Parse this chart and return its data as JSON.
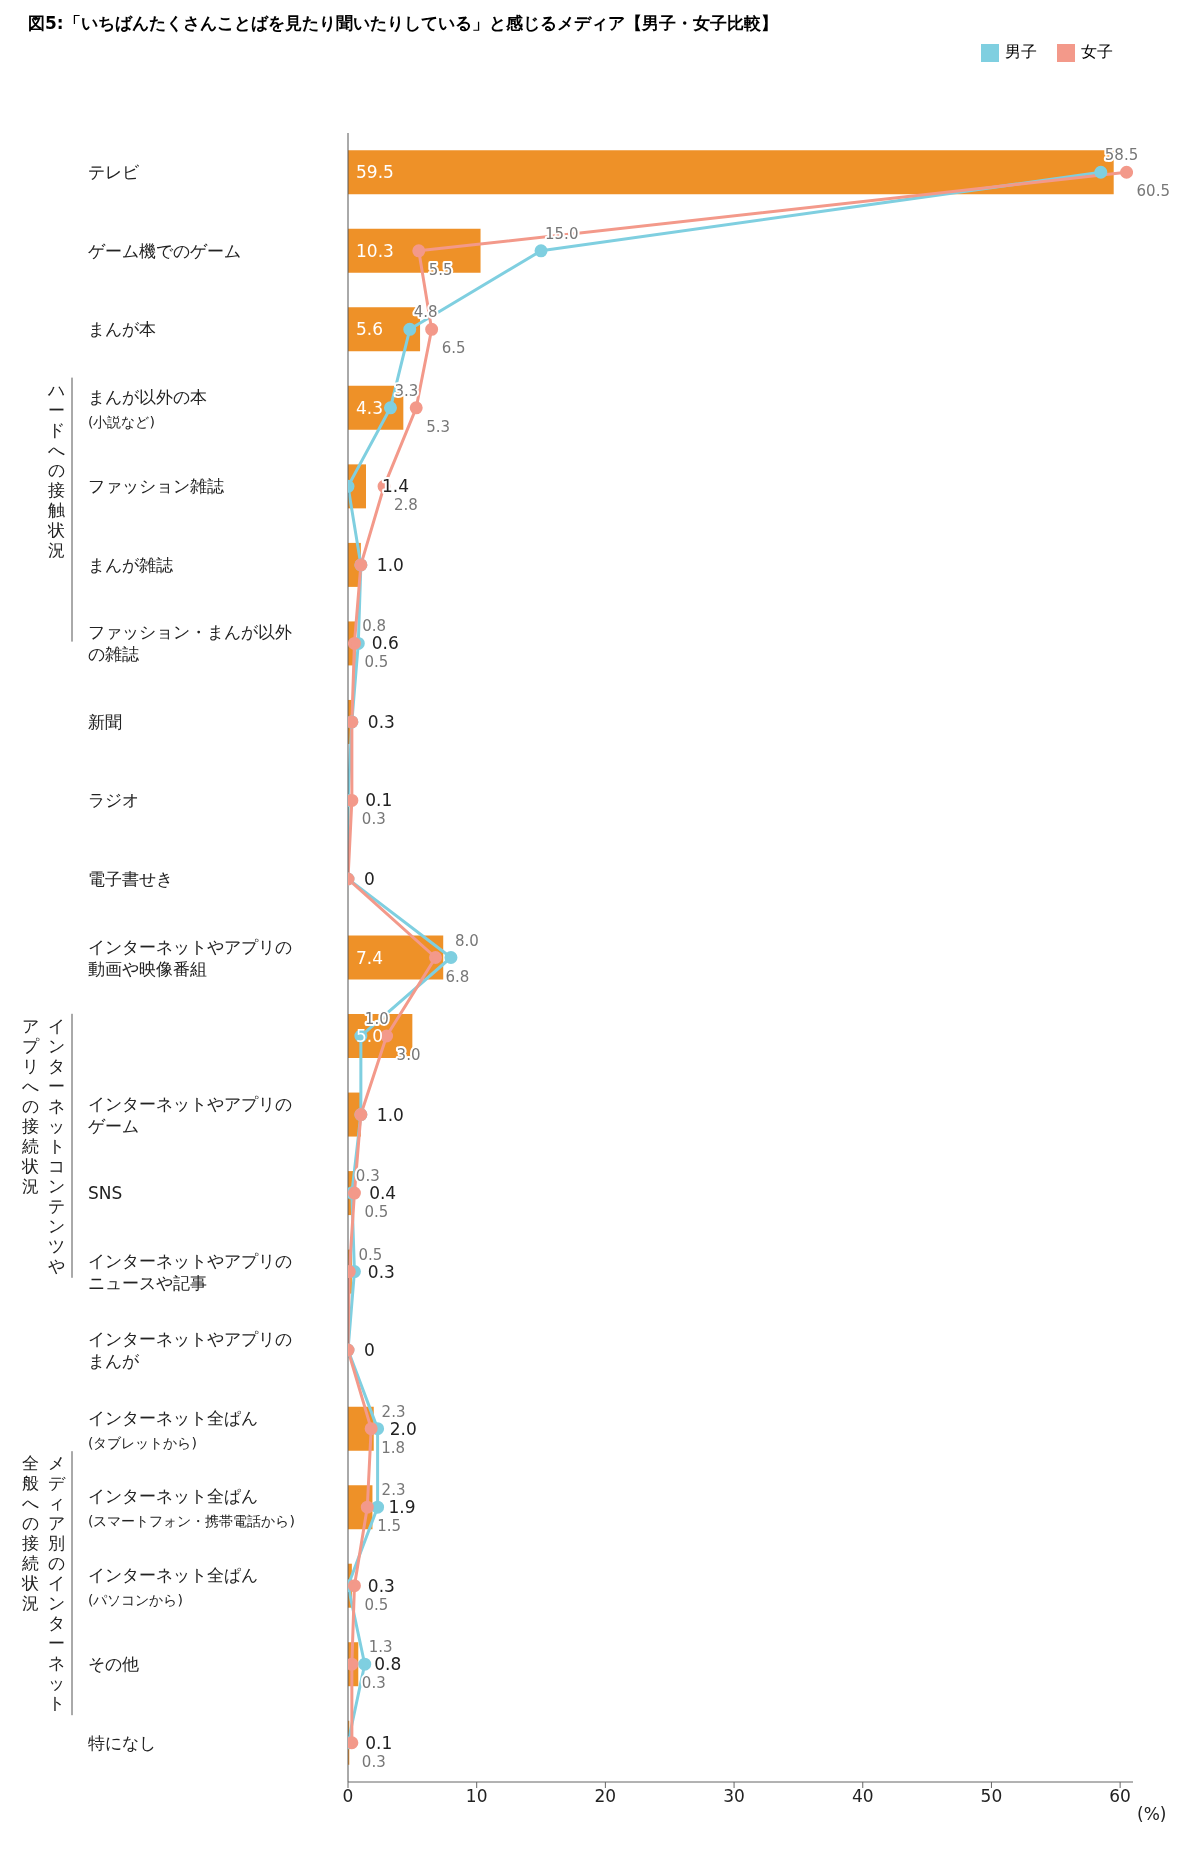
{
  "chart_data": {
    "type": "bar",
    "orientation": "horizontal",
    "title": "図5:「いちばんたくさんことばを見たり聞いたりしている」と感じるメディア【男子・女子比較】",
    "categories": [
      "テレビ",
      "ゲーム機でのゲーム",
      "まんが本",
      "まんが以外の本$_{(小説など)}$",
      "ファッション雑誌",
      "まんが雑誌",
      "ファッション・まんが以外の雑誌",
      "新聞",
      "ラジオ",
      "電子書せき",
      "インターネットやアプリの動画や映像番組",
      null,
      "インターネットやアプリのゲーム",
      "SNS",
      "インターネットやアプリのニュースや記事",
      "インターネットやアプリのまんが",
      "インターネット全ぱん$_{(タブレットから)}$",
      "インターネット全ぱん$_{(スマートフォン・携帯電話から)}$",
      "インターネット全ぱん$_{(パソコンから)}$",
      "その他",
      "特になし"
    ],
    "series": [
      {
        "color": "#ee9128",
        "values": [
          59.5,
          10.3,
          5.6,
          4.3,
          1.4,
          1.0,
          0.6,
          0.3,
          0.1,
          0,
          7.4,
          5.0,
          1.0,
          0.4,
          0.3,
          0,
          2.0,
          1.9,
          0.3,
          0.8,
          0.1
        ],
        "value_labels": [
          "59.5",
          "10.3",
          "5.6",
          "4.3",
          "1.4",
          "1.0",
          "0.6",
          "0.3",
          "0.1",
          "0",
          "7.4",
          "5.0",
          "1.0",
          "0.4",
          "0.3",
          "0",
          "2.0",
          "1.9",
          "0.3",
          "0.8",
          "0.1"
        ]
      },
      {
        "type": "line",
        "name": "男子",
        "color": "#7fcfe0",
        "values": [
          58.5,
          15.0,
          4.8,
          3.3,
          0,
          1.0,
          0.8,
          0.3,
          0,
          0,
          8.0,
          1.0,
          1.0,
          0.3,
          0.5,
          0,
          2.3,
          2.3,
          0,
          1.3,
          0
        ],
        "value_labels": [
          "58.5",
          "15.0",
          "4.8",
          "3.3",
          null,
          null,
          "0.8",
          null,
          null,
          null,
          "8.0",
          "1.0",
          null,
          "0.3",
          "0.5",
          null,
          "2.3",
          "2.3",
          null,
          "1.3",
          null
        ]
      },
      {
        "type": "line",
        "name": "女子",
        "color": "#f3998a",
        "values": [
          60.5,
          5.5,
          6.5,
          5.3,
          2.8,
          1.0,
          0.5,
          0.3,
          0.3,
          0,
          6.8,
          3.0,
          1.0,
          0.5,
          0.1,
          0,
          1.8,
          1.5,
          0.5,
          0.3,
          0.3
        ],
        "value_labels": [
          "60.5",
          "5.5",
          "6.5",
          "5.3",
          "2.8",
          null,
          "0.5",
          null,
          "0.3",
          null,
          "6.8",
          "3.0",
          null,
          "0.5",
          null,
          null,
          "1.8",
          "1.5",
          "0.5",
          "0.3",
          "0.3"
        ]
      }
    ],
    "xlim": [
      0,
      61
    ],
    "xticks": [
      0,
      10,
      20,
      30,
      40,
      50,
      60
    ],
    "xlabel": "(%)",
    "marker": "circle",
    "legend": "top right",
    "annotations": [
      "ハードへの接触状況",
      "インターネットコンテンツや",
      "アプリへの接続状況",
      "メディア別のインターネット",
      "全般への接続状況"
    ]
  }
}
